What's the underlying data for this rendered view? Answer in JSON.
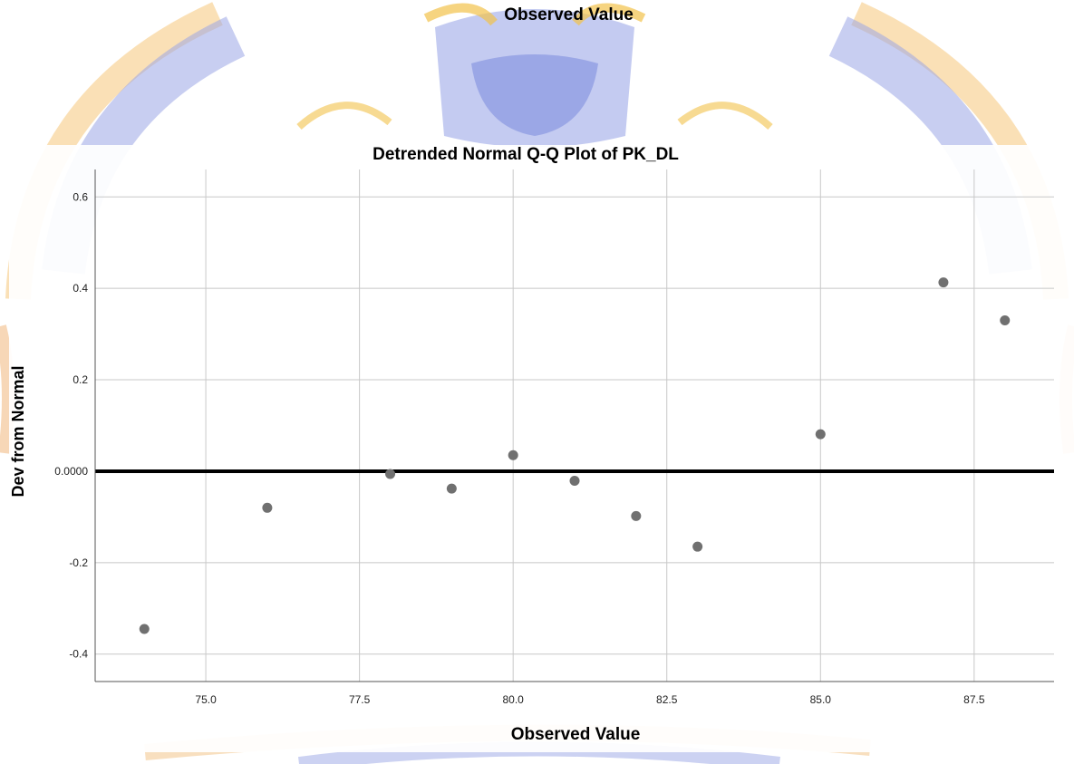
{
  "header": {
    "title": "Observed Value"
  },
  "colors": {
    "background": "#ffffff",
    "gridline": "#c8c8c8",
    "reference_line": "#000000",
    "point": "#707070",
    "watermark_blue": "#6f7fd8",
    "watermark_gold": "#f2b33a",
    "watermark_orange": "#f0a060"
  },
  "chart_data": {
    "type": "scatter",
    "title": "Detrended Normal Q-Q Plot of PK_DL",
    "xlabel": "Observed Value",
    "ylabel": "Dev from Normal",
    "xlim": [
      73.2,
      88.8
    ],
    "ylim": [
      -0.46,
      0.66
    ],
    "x_ticks": [
      75.0,
      77.5,
      80.0,
      82.5,
      85.0,
      87.5
    ],
    "x_tick_labels": [
      "75.0",
      "77.5",
      "80.0",
      "82.5",
      "85.0",
      "87.5"
    ],
    "y_ticks": [
      0.6,
      0.4,
      0.2,
      0.0,
      -0.2,
      -0.4
    ],
    "y_tick_labels": [
      "0.6",
      "0.4",
      "0.2",
      "0.0000",
      "-0.2",
      "-0.4"
    ],
    "grid": true,
    "reference_line_y": 0.0,
    "points": [
      {
        "x": 74,
        "y": -0.345
      },
      {
        "x": 76,
        "y": -0.08
      },
      {
        "x": 78,
        "y": -0.006
      },
      {
        "x": 79,
        "y": -0.038
      },
      {
        "x": 80,
        "y": 0.035
      },
      {
        "x": 81,
        "y": -0.021
      },
      {
        "x": 82,
        "y": -0.098
      },
      {
        "x": 83,
        "y": -0.165
      },
      {
        "x": 85,
        "y": 0.081
      },
      {
        "x": 87,
        "y": 0.413
      },
      {
        "x": 88,
        "y": 0.33
      }
    ]
  }
}
